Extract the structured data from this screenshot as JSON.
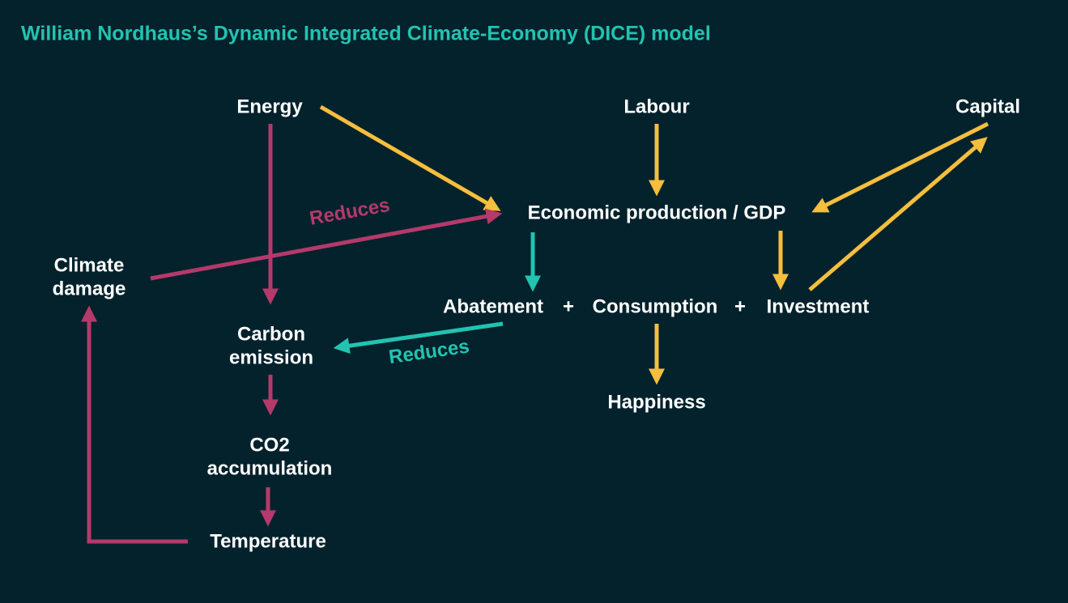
{
  "title": "William Nordhaus’s Dynamic Integrated Climate-Economy (DICE) model",
  "nodes": [
    {
      "lines": [
        "Energy"
      ]
    },
    {
      "lines": [
        "Labour"
      ]
    },
    {
      "lines": [
        "Capital"
      ]
    },
    {
      "lines": [
        "Economic production / GDP"
      ]
    },
    {
      "lines": [
        "Climate",
        "damage"
      ]
    },
    {
      "lines": [
        "Abatement"
      ]
    },
    {
      "lines": [
        "+"
      ]
    },
    {
      "lines": [
        "Consumption"
      ]
    },
    {
      "lines": [
        "+"
      ]
    },
    {
      "lines": [
        "Investment"
      ]
    },
    {
      "lines": [
        "Carbon",
        "emission"
      ]
    },
    {
      "lines": [
        "Happiness"
      ]
    },
    {
      "lines": [
        "CO2",
        "accumulation"
      ]
    },
    {
      "lines": [
        "Temperature"
      ]
    }
  ],
  "edge_labels": [
    "Reduces",
    "Reduces"
  ]
}
